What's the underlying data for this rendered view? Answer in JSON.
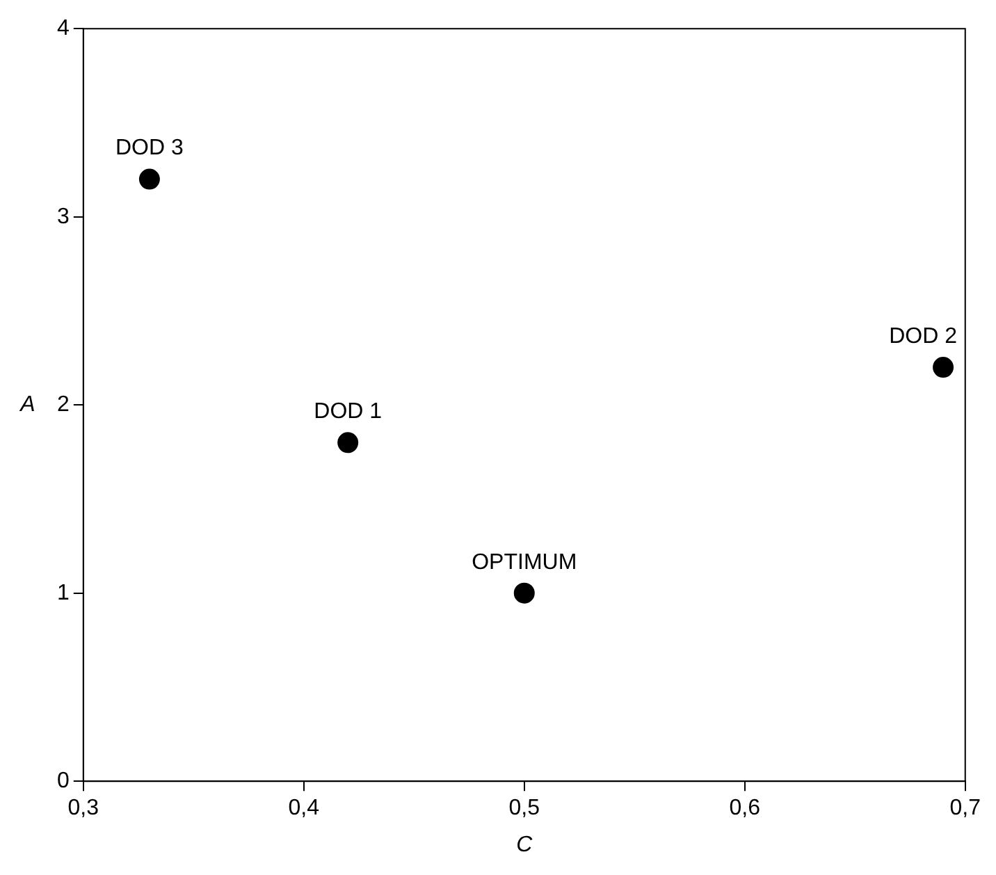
{
  "chart_data": {
    "type": "scatter",
    "xlabel": "C",
    "ylabel": "A",
    "x": [
      0.33,
      0.42,
      0.5,
      0.69
    ],
    "series": [
      {
        "color": "#000000",
        "values": [
          3.2,
          1.8,
          1.0,
          2.2
        ]
      }
    ],
    "xlim": [
      0.3,
      0.7
    ],
    "xticks": [
      {
        "value": 0.3,
        "label": "0,3"
      },
      {
        "value": 0.4,
        "label": "0,4"
      },
      {
        "value": 0.5,
        "label": "0,5"
      },
      {
        "value": 0.6,
        "label": "0,6"
      },
      {
        "value": 0.7,
        "label": "0,7"
      }
    ],
    "ylim": [
      0,
      4
    ],
    "yticks": [
      0,
      1,
      2,
      3,
      4
    ],
    "grid": false,
    "legend": false,
    "marker": "circle",
    "annotations": [
      {
        "text": "DOD 3",
        "x": 0.33,
        "y": 3.2
      },
      {
        "text": "DOD 1",
        "x": 0.42,
        "y": 1.8
      },
      {
        "text": "OPTIMUM",
        "x": 0.5,
        "y": 1.0
      },
      {
        "text": "DOD 2",
        "x": 0.69,
        "y": 2.2
      }
    ]
  }
}
